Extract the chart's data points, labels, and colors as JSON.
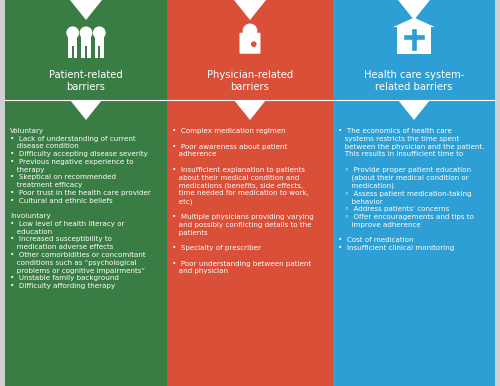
{
  "bg_color": "#d0d0d0",
  "col_colors": [
    "#3a7d44",
    "#d94f38",
    "#2e9fd4"
  ],
  "header_titles": [
    "Patient-related\nbarriers",
    "Physician-related\nbarriers",
    "Health care system-\nrelated barriers"
  ],
  "header_text_color": "#ffffff",
  "body_text_color": "#ffffff",
  "col1_content": "Voluntary\n•  Lack of understanding of current\n   disease condition\n•  Difficulty accepting disease severity\n•  Previous negative experience to\n   therapy\n•  Skeptical on recommended\n   treatment efficacy\n•  Poor trust in the health care provider\n•  Cultural and ethnic beliefs\n\nInvoluntary\n•  Low level of health literacy or\n   education\n•  Increased susceptibility to\n   medication adverse effects\n•  Other comorbidities or concomitant\n   conditions such as “psychological\n   problems or cognitive impairments”\n•  Unstable family background\n•  Difficulty affording therapy",
  "col2_content": "•  Complex medication regimen\n\n•  Poor awareness about patient\n   adherence\n\n•  Insufficient explanation to patients\n   about their medical condition and\n   medications (benefits, side effects,\n   time needed for medication to work,\n   etc)\n\n•  Multiple physicians providing varying\n   and possibly conflicting details to the\n   patients\n\n•  Specialty of prescriber\n\n•  Poor understanding between patient\n   and physician",
  "col3_content": "•  The economics of health care\n   systems restricts the time spent\n   between the physician and the patient.\n   This results in insufficient time to\n\n   ◦  Provide proper patient education\n      (about their medical condition or\n      medication)\n   ◦  Assess patient medication-taking\n      behavior\n   ◦  Address patients’ concerns\n   ◦  Offer encouragements and tips to\n      improve adherence\n\n•  Cost of medication\n•  Insufficient clinical monitoring",
  "figsize": [
    5.0,
    3.86
  ],
  "dpi": 100
}
